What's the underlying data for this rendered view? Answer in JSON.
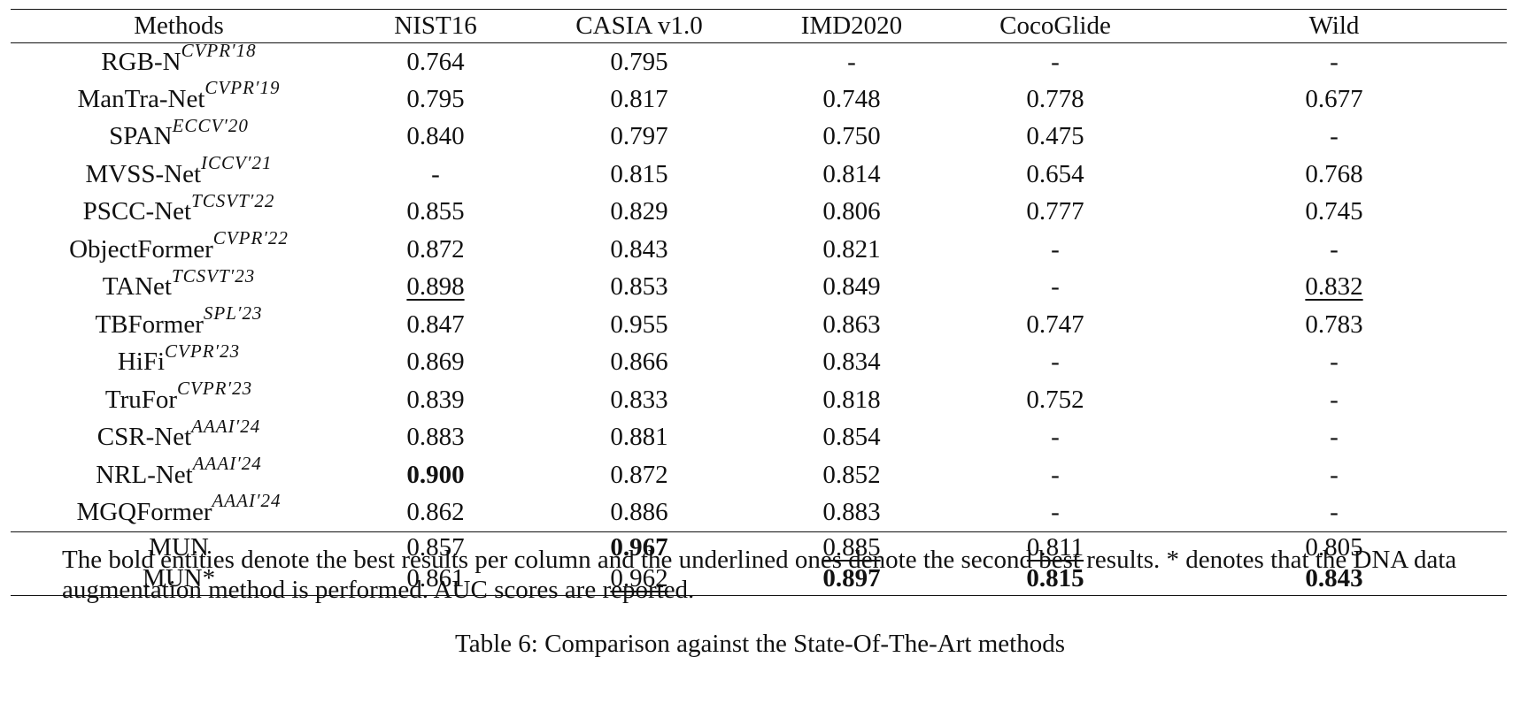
{
  "table": {
    "headers": [
      "Methods",
      "NIST16",
      "CASIA v1.0",
      "IMD2020",
      "CocoGlide",
      "Wild"
    ],
    "rows": [
      {
        "method": "RGB-N",
        "venue": "CVPR′18",
        "values": [
          "0.764",
          "0.795",
          "-",
          "-",
          "-"
        ],
        "best": [],
        "second": []
      },
      {
        "method": "ManTra-Net",
        "venue": "CVPR′19",
        "values": [
          "0.795",
          "0.817",
          "0.748",
          "0.778",
          "0.677"
        ],
        "best": [],
        "second": []
      },
      {
        "method": "SPAN",
        "venue": "ECCV′20",
        "values": [
          "0.840",
          "0.797",
          "0.750",
          "0.475",
          "-"
        ],
        "best": [],
        "second": []
      },
      {
        "method": "MVSS-Net",
        "venue": "ICCV′21",
        "values": [
          "-",
          "0.815",
          "0.814",
          "0.654",
          "0.768"
        ],
        "best": [],
        "second": []
      },
      {
        "method": "PSCC-Net",
        "venue": "TCSVT′22",
        "values": [
          "0.855",
          "0.829",
          "0.806",
          "0.777",
          "0.745"
        ],
        "best": [],
        "second": []
      },
      {
        "method": "ObjectFormer",
        "venue": "CVPR′22",
        "values": [
          "0.872",
          "0.843",
          "0.821",
          "-",
          "-"
        ],
        "best": [],
        "second": []
      },
      {
        "method": "TANet",
        "venue": "TCSVT′23",
        "values": [
          "0.898",
          "0.853",
          "0.849",
          "-",
          "0.832"
        ],
        "best": [],
        "second": [
          0,
          4
        ]
      },
      {
        "method": "TBFormer",
        "venue": "SPL′23",
        "values": [
          "0.847",
          "0.955",
          "0.863",
          "0.747",
          "0.783"
        ],
        "best": [],
        "second": []
      },
      {
        "method": "HiFi",
        "venue": "CVPR′23",
        "values": [
          "0.869",
          "0.866",
          "0.834",
          "-",
          "-"
        ],
        "best": [],
        "second": []
      },
      {
        "method": "TruFor",
        "venue": "CVPR′23",
        "values": [
          "0.839",
          "0.833",
          "0.818",
          "0.752",
          "-"
        ],
        "best": [],
        "second": []
      },
      {
        "method": "CSR-Net",
        "venue": "AAAI′24",
        "values": [
          "0.883",
          "0.881",
          "0.854",
          "-",
          "-"
        ],
        "best": [],
        "second": []
      },
      {
        "method": "NRL-Net",
        "venue": "AAAI′24",
        "values": [
          "0.900",
          "0.872",
          "0.852",
          "-",
          "-"
        ],
        "best": [
          0
        ],
        "second": []
      },
      {
        "method": "MGQFormer",
        "venue": "AAAI′24",
        "values": [
          "0.862",
          "0.886",
          "0.883",
          "-",
          "-"
        ],
        "best": [],
        "second": []
      }
    ],
    "ours": [
      {
        "method": "MUN",
        "values": [
          "0.857",
          "0.967",
          "0.885",
          "0.811",
          "0.805"
        ],
        "best": [
          1
        ],
        "second": [
          2,
          3
        ]
      },
      {
        "method": "MUN*",
        "values": [
          "0.861",
          "0.962",
          "0.897",
          "0.815",
          "0.843"
        ],
        "best": [
          2,
          3,
          4
        ],
        "second": [
          1
        ]
      }
    ]
  },
  "note": "The bold entities denote the best results per column and the underlined ones denote the second best results. * denotes that the DNA data augmentation method is performed. AUC scores are reported.",
  "caption": "Table 6: Comparison against the State-Of-The-Art methods"
}
